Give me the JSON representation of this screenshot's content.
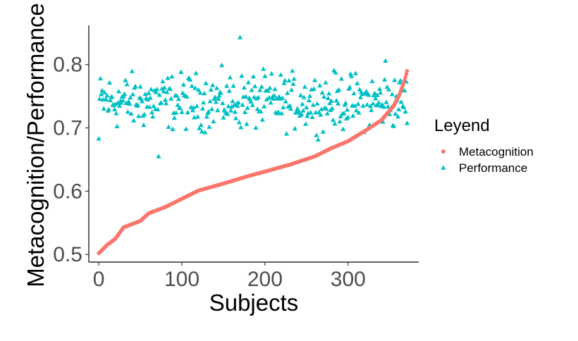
{
  "chart_data": {
    "type": "scatter",
    "xlabel": "Subjects",
    "ylabel": "Metacognition/Performance",
    "xlim": [
      -12,
      385
    ],
    "ylim": [
      0.488,
      0.862
    ],
    "x_ticks": [
      0,
      100,
      200,
      300
    ],
    "y_ticks": [
      0.5,
      0.6,
      0.7,
      0.8
    ],
    "grid": false,
    "legend": {
      "title": "Leyend",
      "position": "right",
      "entries": [
        {
          "label": "Metacognition",
          "color": "#F8766D",
          "marker": "circle"
        },
        {
          "label": "Performance",
          "color": "#00BFC4",
          "marker": "triangle"
        }
      ]
    },
    "n_subjects": 372,
    "series": [
      {
        "name": "Metacognition",
        "color": "#F8766D",
        "marker": "circle",
        "sorted_ascending": true,
        "x_range": [
          0,
          371
        ],
        "anchors": [
          [
            0,
            0.502
          ],
          [
            10,
            0.515
          ],
          [
            20,
            0.525
          ],
          [
            30,
            0.543
          ],
          [
            50,
            0.553
          ],
          [
            60,
            0.565
          ],
          [
            80,
            0.575
          ],
          [
            100,
            0.588
          ],
          [
            120,
            0.601
          ],
          [
            150,
            0.612
          ],
          [
            180,
            0.624
          ],
          [
            200,
            0.631
          ],
          [
            230,
            0.642
          ],
          [
            260,
            0.655
          ],
          [
            280,
            0.668
          ],
          [
            300,
            0.679
          ],
          [
            320,
            0.695
          ],
          [
            340,
            0.712
          ],
          [
            355,
            0.735
          ],
          [
            362,
            0.753
          ],
          [
            368,
            0.775
          ],
          [
            371,
            0.79
          ]
        ]
      },
      {
        "name": "Performance",
        "color": "#00BFC4",
        "marker": "triangle",
        "x_range": [
          0,
          371
        ],
        "center": 0.742,
        "spread": 0.058,
        "extremes": [
          [
            170,
            0.843
          ],
          [
            72,
            0.655
          ],
          [
            0,
            0.683
          ],
          [
            345,
            0.806
          ]
        ]
      }
    ]
  }
}
